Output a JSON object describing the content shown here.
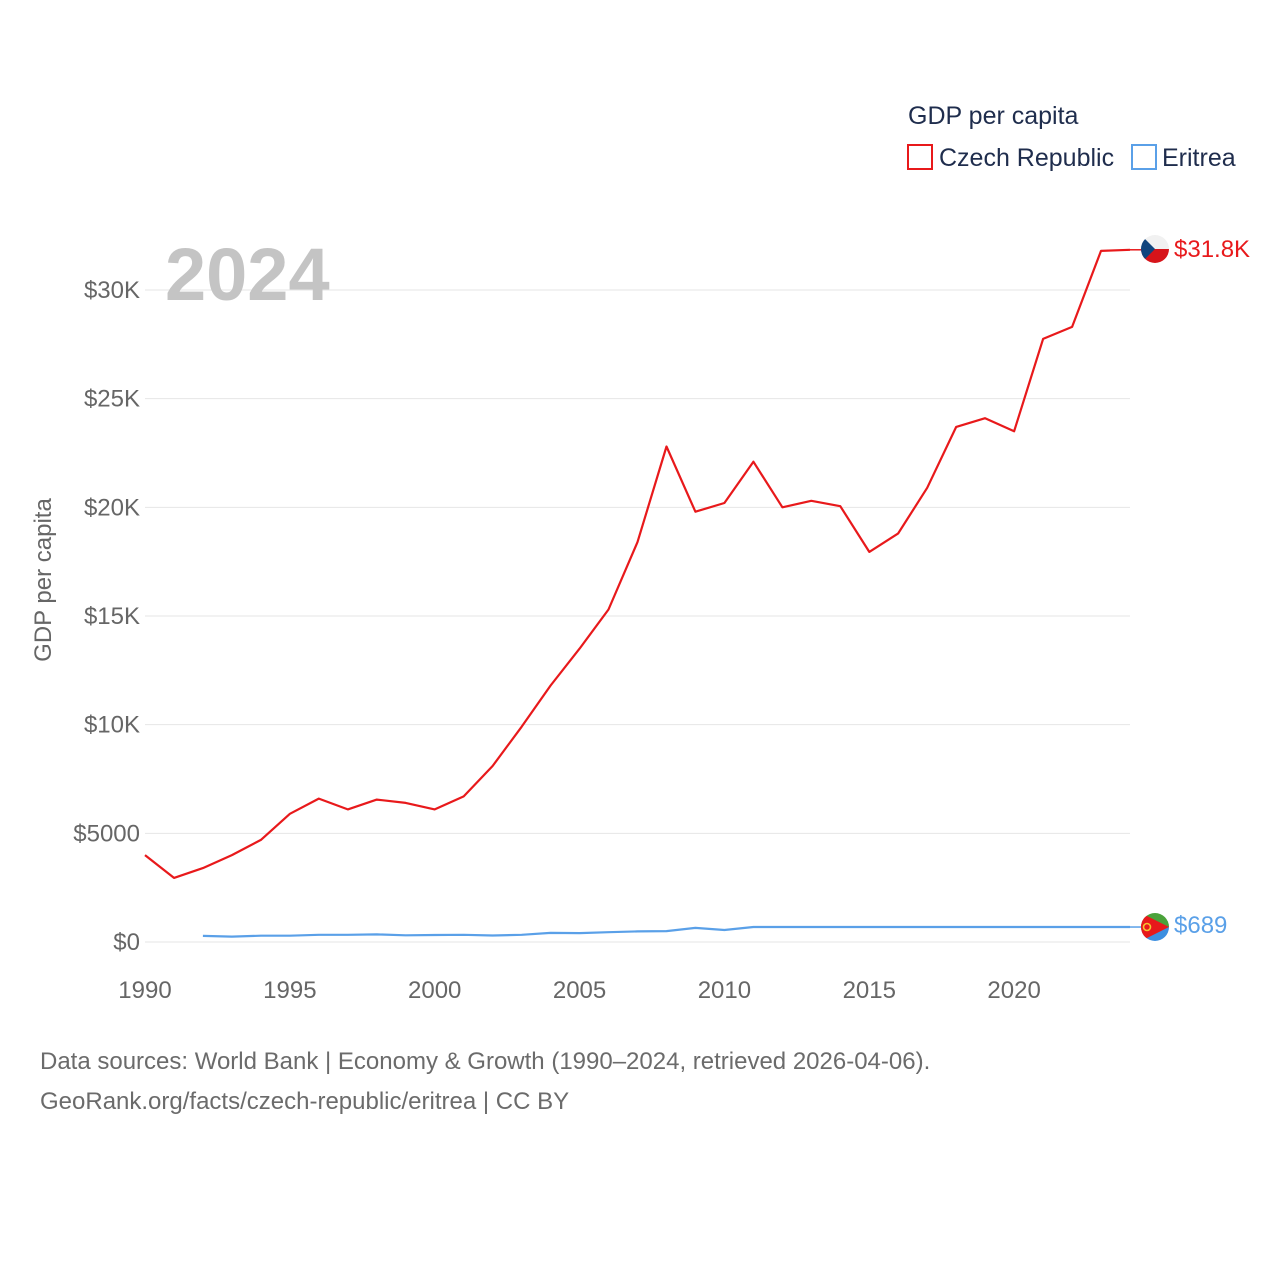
{
  "chart_data": {
    "type": "line",
    "title": "GDP per capita",
    "ylabel": "GDP per capita",
    "xlabel": "",
    "year_watermark": "2024",
    "xlim": [
      1990,
      2024
    ],
    "ylim": [
      0,
      32000
    ],
    "x_ticks": [
      1990,
      1995,
      2000,
      2005,
      2010,
      2015,
      2020
    ],
    "y_ticks": [
      {
        "value": 0,
        "label": "$0"
      },
      {
        "value": 5000,
        "label": "$5000"
      },
      {
        "value": 10000,
        "label": "$10K"
      },
      {
        "value": 15000,
        "label": "$15K"
      },
      {
        "value": 20000,
        "label": "$20K"
      },
      {
        "value": 25000,
        "label": "$25K"
      },
      {
        "value": 30000,
        "label": "$30K"
      }
    ],
    "legend": {
      "title": "GDP per capita",
      "position": "top-right"
    },
    "series": [
      {
        "name": "Czech Republic",
        "color": "#e8191b",
        "end_label": "$31.8K",
        "flag": "czech-flag",
        "x": [
          1990,
          1991,
          1992,
          1993,
          1994,
          1995,
          1996,
          1997,
          1998,
          1999,
          2000,
          2001,
          2002,
          2003,
          2004,
          2005,
          2006,
          2007,
          2008,
          2009,
          2010,
          2011,
          2012,
          2013,
          2014,
          2015,
          2016,
          2017,
          2018,
          2019,
          2020,
          2021,
          2022,
          2023,
          2024
        ],
        "values": [
          4000,
          2950,
          3400,
          4000,
          4700,
          5900,
          6600,
          6100,
          6550,
          6400,
          6100,
          6700,
          8100,
          9900,
          11800,
          13500,
          15300,
          18400,
          22800,
          19800,
          20200,
          22100,
          20000,
          20300,
          20050,
          17950,
          18800,
          20900,
          23700,
          24100,
          23500,
          27750,
          28300,
          31800,
          31850
        ]
      },
      {
        "name": "Eritrea",
        "color": "#5aa0e8",
        "end_label": "$689",
        "flag": "eritrea-flag",
        "x": [
          1992,
          1993,
          1994,
          1995,
          1996,
          1997,
          1998,
          1999,
          2000,
          2001,
          2002,
          2003,
          2004,
          2005,
          2006,
          2007,
          2008,
          2009,
          2010,
          2011,
          2012,
          2013,
          2014,
          2015,
          2016,
          2017,
          2018,
          2019,
          2020,
          2021,
          2022,
          2023,
          2024
        ],
        "values": [
          280,
          250,
          290,
          290,
          330,
          330,
          350,
          310,
          320,
          330,
          300,
          330,
          420,
          410,
          450,
          490,
          500,
          650,
          550,
          689,
          689,
          689,
          689,
          689,
          689,
          689,
          689,
          689,
          689,
          689,
          689,
          689,
          689
        ]
      }
    ]
  },
  "footer": {
    "line1": "Data sources: World Bank | Economy & Growth (1990–2024, retrieved 2026-04-06).",
    "line2": "GeoRank.org/facts/czech-republic/eritrea | CC BY"
  }
}
